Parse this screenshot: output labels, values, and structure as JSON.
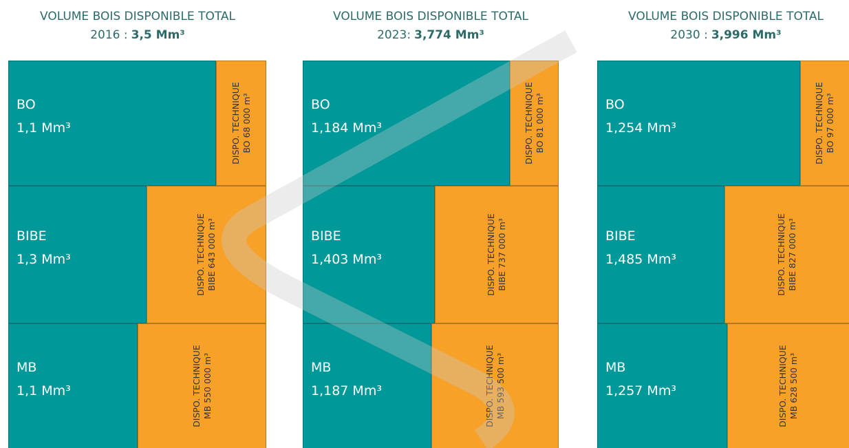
{
  "panels": [
    {
      "title": "VOLUME BOIS DISPONIBLE TOTAL",
      "year": "2016 :",
      "total": "3,5 Mm³",
      "blocks": [
        {
          "name": "BO",
          "volume": "1,1 Mm³",
          "dispo_title": "DISPO. TECHNIQUE",
          "dispo": "BO 68 000 m³"
        },
        {
          "name": "BIBE",
          "volume": "1,3 Mm³",
          "dispo_title": "DISPO. TECHNIQUE",
          "dispo": "BIBE 643 000 m³"
        },
        {
          "name": "MB",
          "volume": "1,1 Mm³",
          "dispo_title": "DISPO. TECHNIQUE",
          "dispo": "MB 550 000 m³"
        }
      ]
    },
    {
      "title": "VOLUME BOIS DISPONIBLE TOTAL",
      "year": "2023:",
      "total": "3,774 Mm³",
      "blocks": [
        {
          "name": "BO",
          "volume": "1,184 Mm³",
          "dispo_title": "DISPO. TECHNIQUE",
          "dispo": "BO 81 000 m³"
        },
        {
          "name": "BIBE",
          "volume": "1,403 Mm³",
          "dispo_title": "DISPO. TECHNIQUE",
          "dispo": "BIBE 737 000 m³"
        },
        {
          "name": "MB",
          "volume": "1,187 Mm³",
          "dispo_title": "DISPO. TECHNIQUE",
          "dispo": "MB 593 500 m³"
        }
      ]
    },
    {
      "title": "VOLUME BOIS DISPONIBLE TOTAL",
      "year": "2030 :",
      "total": "3,996 Mm³",
      "blocks": [
        {
          "name": "BO",
          "volume": "1,254 Mm³",
          "dispo_title": "DISPO. TECHNIQUE",
          "dispo": "BO 97 000 m³"
        },
        {
          "name": "BIBE",
          "volume": "1,485 Mm³",
          "dispo_title": "DISPO. TECHNIQUE",
          "dispo": "BIBE 827 000 m³"
        },
        {
          "name": "MB",
          "volume": "1,257 Mm³",
          "dispo_title": "DISPO. TECHNIQUE",
          "dispo": "MB 628 500 m³"
        }
      ]
    }
  ]
}
